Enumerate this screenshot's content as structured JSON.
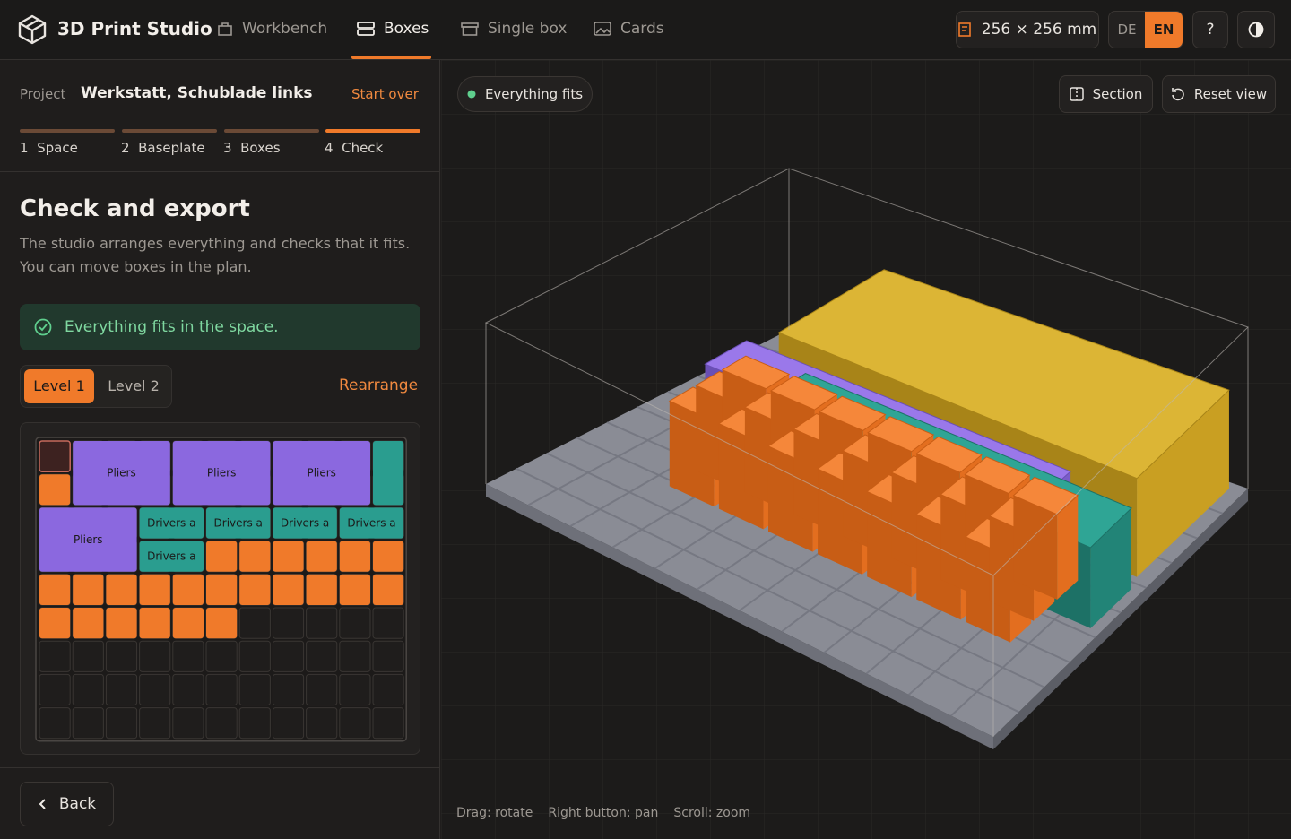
{
  "header": {
    "brand": "3D Print Studio",
    "tabs": [
      "Workbench",
      "Boxes",
      "Single box",
      "Cards"
    ],
    "size": "256 × 256 mm",
    "languages": [
      "DE",
      "EN"
    ],
    "help": "?"
  },
  "sidebar": {
    "project_label": "Project",
    "project_name": "Werkstatt, Schublade links",
    "start_over": "Start over",
    "steps": [
      {
        "number": "1",
        "label": "Space"
      },
      {
        "number": "2",
        "label": "Baseplate"
      },
      {
        "number": "3",
        "label": "Boxes"
      },
      {
        "number": "4",
        "label": "Check"
      }
    ],
    "heading": "Check and export",
    "description": "The studio arranges everything and checks that it fits. You can move boxes in the plan.",
    "status": "Everything fits in the space.",
    "levels": [
      "Level 1",
      "Level 2"
    ],
    "rearrange": "Rearrange",
    "plan": {
      "labels": [
        "Pliers",
        "Pliers",
        "Pliers",
        "Pliers",
        "Drivers a",
        "Drivers a",
        "Drivers a",
        "Drivers a",
        "Drivers a"
      ]
    },
    "back": "Back"
  },
  "viewport": {
    "status": "Everything fits",
    "section": "Section",
    "reset": "Reset view",
    "hints": [
      "Drag: rotate",
      "Right button: pan",
      "Scroll: zoom"
    ]
  }
}
